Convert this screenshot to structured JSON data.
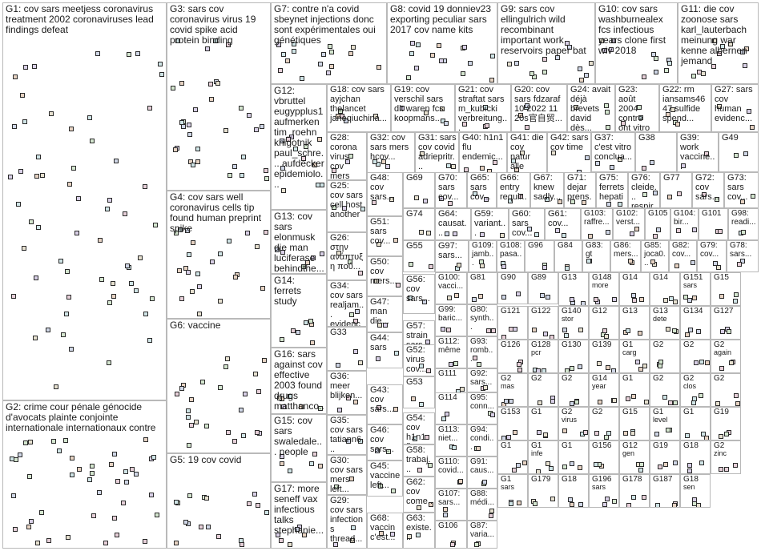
{
  "groups": [
    {
      "id": "G1",
      "label": "G1: cov sars meetjess coronavirus treatment 2002 coronaviruses lead findings defeat"
    },
    {
      "id": "G2",
      "label": "G2: crime cour pénale génocide d'avocats plainte conjointe internationale internationaux contre"
    },
    {
      "id": "G3",
      "label": "G3: sars cov coronavirus virus 19 covid spike acid protein binding"
    },
    {
      "id": "G4",
      "label": "G4: cov sars well coronavirus cells tip found human preprint spike"
    },
    {
      "id": "G5",
      "label": "G5: 19 cov covid"
    },
    {
      "id": "G6",
      "label": "G6: vaccine"
    },
    {
      "id": "G7",
      "label": "G7: contre n'a covid sbeynet injections donc sont expérimentales oui génétiques"
    },
    {
      "id": "G8",
      "label": "G8: covid 19 donniev23 exporting peculiar sars 2017 cov name kits"
    },
    {
      "id": "G9",
      "label": "G9: sars cov ellingulrich wild recombinant important work reservoirs paper bat"
    },
    {
      "id": "G10",
      "label": "G10: cov sars washburnealex fcs infectious years clone first wiv 2018"
    },
    {
      "id": "G11",
      "label": "G11: die cov zoonose sars karl_lauterbach meinung war kenne albernen jemand"
    },
    {
      "id": "G12",
      "label": "G12: vbruttel eugypplus1 aufmerken tim_roehn knigotnik paul_schre... aufdecker epidemiolo..."
    },
    {
      "id": "G13",
      "label": "G13: cov sars elonmusk die man luciferase behindthe... coronavirus covid"
    },
    {
      "id": "G14",
      "label": "G14: ferrets study"
    },
    {
      "id": "G15",
      "label": "G15: cov sars swaledale... people"
    },
    {
      "id": "G16",
      "label": "G16: sars against cov effective 2003 found drugs matthanco..."
    },
    {
      "id": "G17",
      "label": "G17: more seneff vax infectious talks stephanie..."
    },
    {
      "id": "G18",
      "label": "G18: cov sars ayjchan thelancet janeqiuchina..."
    },
    {
      "id": "G19",
      "label": "G19: cov verschil sars dit waren fcs koopmans..."
    },
    {
      "id": "G20",
      "label": "G20: cov sars fdzaraf 10 2022 11 20s官自贸..."
    },
    {
      "id": "G21",
      "label": "G21: cov straftat sars m_kubicki verbreitung..."
    },
    {
      "id": "G22",
      "label": "G22: rm iansams46 47 sulfide spend..."
    },
    {
      "id": "G23",
      "label": "G23: août 2004 contre ont vitro cov..."
    },
    {
      "id": "G24",
      "label": "G24: avait déjà brevets david dès..."
    },
    {
      "id": "G25",
      "label": "G25: cov sars cell host another"
    },
    {
      "id": "G26",
      "label": "G26: στην ανάπτυξη πού..."
    },
    {
      "id": "G27",
      "label": "G27: sars cov human evidenc..."
    },
    {
      "id": "G28",
      "label": "G28: corona virus cov mers sars"
    },
    {
      "id": "G29",
      "label": "G29: cov sars infections thread..."
    },
    {
      "id": "G30",
      "label": "G30: cov sars mers left..."
    },
    {
      "id": "G31",
      "label": "G31: sars cov covid adriepritr..."
    },
    {
      "id": "G32",
      "label": "G32: cov sars mers hcov..."
    },
    {
      "id": "G33",
      "label": "G33"
    },
    {
      "id": "G34",
      "label": "G34: cov sars realjam... evidence"
    },
    {
      "id": "G35",
      "label": "G35: cov sars tatiann6... théorie..."
    },
    {
      "id": "G36",
      "label": "G36: meer blijken..."
    },
    {
      "id": "G37",
      "label": "G37: c'est vitro conclua..."
    },
    {
      "id": "G38",
      "label": "G38"
    },
    {
      "id": "G39",
      "label": "G39: work vaccine..."
    },
    {
      "id": "G40",
      "label": "G40: h1n1 flu endemic..."
    },
    {
      "id": "G41",
      "label": "G41: die cov natur alle"
    },
    {
      "id": "G42",
      "label": "G42: sars cov time"
    },
    {
      "id": "G43",
      "label": "G43: cov sars..."
    },
    {
      "id": "G44",
      "label": "G44: sars"
    },
    {
      "id": "G45",
      "label": "G45: vaccine left..."
    },
    {
      "id": "G46",
      "label": "G46: cov sars..."
    },
    {
      "id": "G47",
      "label": "G47: man die..."
    },
    {
      "id": "G48",
      "label": "G48: cov sars..."
    },
    {
      "id": "G49",
      "label": "G49"
    },
    {
      "id": "G50",
      "label": "G50: cov mers..."
    },
    {
      "id": "G51",
      "label": "G51: sars cov..."
    },
    {
      "id": "G52",
      "label": "G52: virus cov..."
    },
    {
      "id": "G53",
      "label": "G53"
    },
    {
      "id": "G54",
      "label": "G54: cov h1n1 flu..."
    },
    {
      "id": "G55",
      "label": "G55"
    },
    {
      "id": "G56",
      "label": "G56: cov sars..."
    },
    {
      "id": "G57",
      "label": "G57: strain sars..."
    },
    {
      "id": "G58",
      "label": "G58: trabaj..."
    },
    {
      "id": "G59",
      "label": "G59: variant..."
    },
    {
      "id": "G60",
      "label": "G60: sars cov..."
    },
    {
      "id": "G61",
      "label": "G61: cov..."
    },
    {
      "id": "G62",
      "label": "G62: cov come..."
    },
    {
      "id": "G63",
      "label": "G63: existe..."
    },
    {
      "id": "G64",
      "label": "G64: causat..."
    },
    {
      "id": "G65",
      "label": "G65: sars cov..."
    },
    {
      "id": "G66",
      "label": "G66: entry requir..."
    },
    {
      "id": "G67",
      "label": "G67: knew sadly..."
    },
    {
      "id": "G68",
      "label": "G68: vaccin c'est..."
    },
    {
      "id": "G69",
      "label": "G69"
    },
    {
      "id": "G70",
      "label": "G70: sars cov..."
    },
    {
      "id": "G71",
      "label": "G71: dejar prens..."
    },
    {
      "id": "G72",
      "label": "G72: cov sars..."
    },
    {
      "id": "G73",
      "label": "G73: sars cov..."
    },
    {
      "id": "G74",
      "label": "G74"
    },
    {
      "id": "G75",
      "label": "G75: ferrets hepati..."
    },
    {
      "id": "G76",
      "label": "G76: cleide... respir..."
    },
    {
      "id": "G77",
      "label": "G77"
    },
    {
      "id": "G78",
      "label": "G78: sars..."
    },
    {
      "id": "G79",
      "label": "G79: cov..."
    },
    {
      "id": "G80",
      "label": "G80: synth..."
    },
    {
      "id": "G81",
      "label": "G81"
    },
    {
      "id": "G82",
      "label": "G82: cov..."
    },
    {
      "id": "G83",
      "label": "G83: gt"
    },
    {
      "id": "G84",
      "label": "G84"
    },
    {
      "id": "G85",
      "label": "G85: joca0..."
    },
    {
      "id": "G86",
      "label": "G86: mers..."
    },
    {
      "id": "G87",
      "label": "G87: varia..."
    },
    {
      "id": "G88",
      "label": "G88: médi..."
    },
    {
      "id": "G89",
      "label": "G89"
    },
    {
      "id": "G90",
      "label": "G90"
    },
    {
      "id": "G91",
      "label": "G91: caus..."
    },
    {
      "id": "G92",
      "label": "G92: sars..."
    },
    {
      "id": "G93",
      "label": "G93: romb..."
    },
    {
      "id": "G94",
      "label": "G94: condi..."
    },
    {
      "id": "G95",
      "label": "G95: conn..."
    },
    {
      "id": "G96",
      "label": "G96"
    },
    {
      "id": "G97",
      "label": "G97: sars..."
    },
    {
      "id": "G98",
      "label": "G98: readi..."
    },
    {
      "id": "G99",
      "label": "G99: baric..."
    },
    {
      "id": "G100",
      "label": "G100: vacci..."
    },
    {
      "id": "G101",
      "label": "G101"
    },
    {
      "id": "G102",
      "label": "G102: verst..."
    },
    {
      "id": "G103",
      "label": "G103: raffre..."
    },
    {
      "id": "G104",
      "label": "G104: bir..."
    },
    {
      "id": "G105",
      "label": "G105"
    },
    {
      "id": "G106",
      "label": "G106"
    },
    {
      "id": "G107",
      "label": "G107: sars..."
    },
    {
      "id": "G108",
      "label": "G108: pasa..."
    },
    {
      "id": "G109",
      "label": "G109: jamb..."
    },
    {
      "id": "G110",
      "label": "G110: covid..."
    },
    {
      "id": "G111",
      "label": "G111"
    },
    {
      "id": "G112",
      "label": "G112: même"
    },
    {
      "id": "G113",
      "label": "G113: niet..."
    },
    {
      "id": "G114",
      "label": "G114"
    }
  ],
  "small_labels": [
    "G13",
    "G148",
    "G14",
    "G14",
    "G151",
    "G15",
    "G121",
    "G122",
    "G140",
    "G12",
    "G13",
    "G13",
    "G134",
    "G127",
    "G126",
    "G128",
    "G130",
    "G139",
    "G1",
    "G2",
    "G2",
    "G2",
    "G2",
    "G2",
    "G2",
    "G14",
    "G1",
    "G2",
    "G2",
    "G2",
    "G153",
    "G1",
    "G2",
    "G2",
    "G15",
    "G1",
    "G1",
    "G19",
    "G1",
    "G1",
    "G1",
    "G156",
    "G12",
    "G19",
    "G18",
    "G2",
    "G1",
    "G179",
    "G18",
    "G196",
    "G178",
    "G187",
    "G18"
  ],
  "small_words": [
    "more",
    "sars",
    "stor",
    "dete",
    "pcr",
    "carg",
    "again",
    "mas",
    "year",
    "clos",
    "virus",
    "level",
    "infe",
    "gen",
    "zinc",
    "sars",
    "sars",
    "sen",
    "iga",
    "det",
    "dir",
    "cov"
  ]
}
